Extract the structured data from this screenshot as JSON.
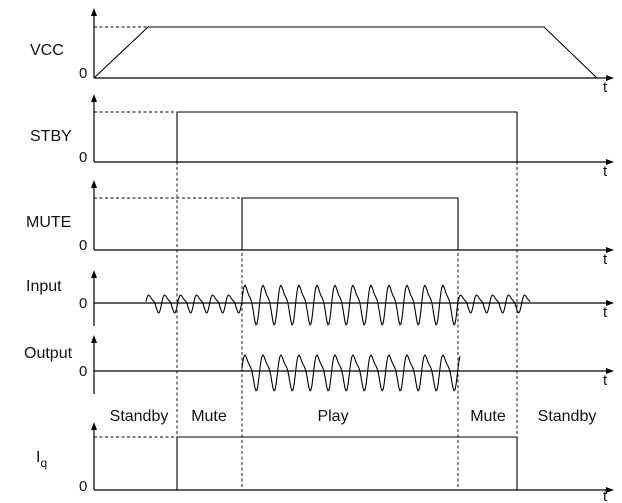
{
  "rows": [
    {
      "key": "vcc",
      "label": "VCC",
      "zero_label": "0",
      "time_label": "t"
    },
    {
      "key": "stby",
      "label": "STBY",
      "zero_label": "0",
      "time_label": "t"
    },
    {
      "key": "mute",
      "label": "MUTE",
      "zero_label": "0",
      "time_label": "t"
    },
    {
      "key": "input",
      "label": "Input",
      "zero_label": "0",
      "time_label": "t"
    },
    {
      "key": "output",
      "label": "Output",
      "zero_label": "0",
      "time_label": "t"
    },
    {
      "key": "iq",
      "label": "I",
      "label_sub": "q",
      "zero_label": "0",
      "time_label": "t"
    }
  ],
  "phases": [
    "Standby",
    "Mute",
    "Play",
    "Mute",
    "Standby"
  ]
}
